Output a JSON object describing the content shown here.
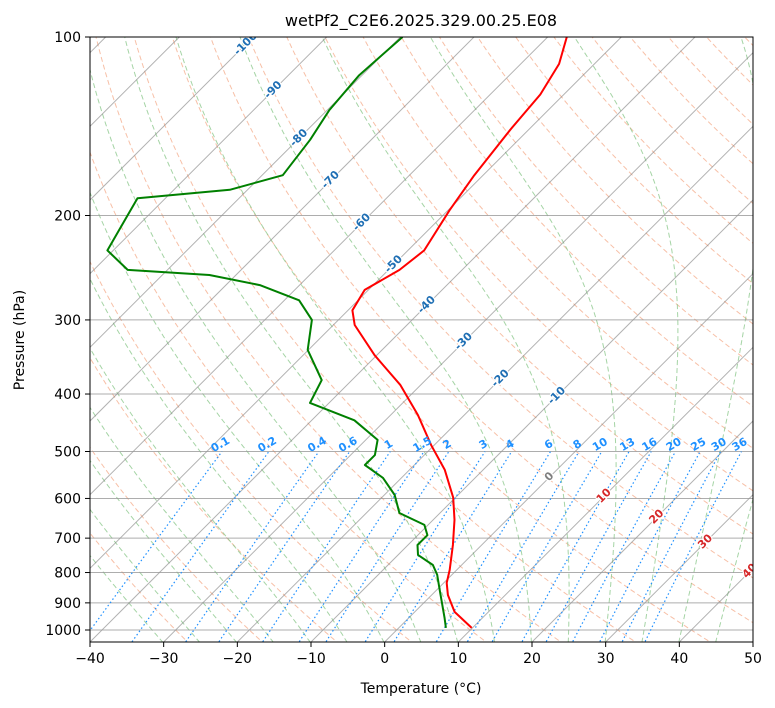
{
  "chart_data": {
    "type": "line",
    "title": "wetPf2_C2E6.2025.329.00.25.E08",
    "xlabel": "Temperature (°C)",
    "ylabel": "Pressure (hPa)",
    "xlim": [
      -40,
      50
    ],
    "ylim": [
      1050,
      100
    ],
    "yscale": "log",
    "grid": true,
    "x_ticks": [
      "−40",
      "−30",
      "−20",
      "−10",
      "0",
      "10",
      "20",
      "30",
      "40",
      "50"
    ],
    "x_tick_values": [
      -40,
      -30,
      -20,
      -10,
      0,
      10,
      20,
      30,
      40,
      50
    ],
    "y_ticks": [
      "100",
      "200",
      "300",
      "400",
      "500",
      "600",
      "700",
      "800",
      "900",
      "1000"
    ],
    "y_tick_values": [
      100,
      200,
      300,
      400,
      500,
      600,
      700,
      800,
      900,
      1000
    ],
    "isotherm_labels": [
      "-100",
      "-90",
      "-80",
      "-70",
      "-60",
      "-50",
      "-40",
      "-30",
      "-20",
      "-10",
      "0",
      "10",
      "20",
      "30",
      "40"
    ],
    "isotherm_label_values": [
      -100,
      -90,
      -80,
      -70,
      -60,
      -50,
      -40,
      -30,
      -20,
      -10,
      0,
      10,
      20,
      30,
      40
    ],
    "mixing_ratio_labels": [
      "0.1",
      "0.2",
      "0.4",
      "0.6",
      "1",
      "1.5",
      "2",
      "3",
      "4",
      "6",
      "8",
      "10",
      "13",
      "16",
      "20",
      "25",
      "30",
      "36"
    ],
    "mixing_ratio_values": [
      0.1,
      0.2,
      0.4,
      0.6,
      1,
      1.5,
      2,
      3,
      4,
      6,
      8,
      10,
      13,
      16,
      20,
      25,
      30,
      36
    ],
    "series": [
      {
        "name": "temperature",
        "color": "#ff0000",
        "pressure": [
          992,
          932,
          873,
          833,
          792,
          719,
          652,
          598,
          537,
          488,
          434,
          386,
          344,
          306,
          289,
          267,
          247,
          229,
          196,
          171,
          143,
          125,
          111,
          100
        ],
        "values": [
          9.9,
          5.4,
          2.2,
          0.4,
          -0.95,
          -3.9,
          -7.1,
          -10.3,
          -15.2,
          -20.4,
          -26.3,
          -32.8,
          -40.3,
          -47.1,
          -49.4,
          -50.5,
          -48.5,
          -47.8,
          -49.8,
          -51.2,
          -52.5,
          -53.2,
          -54.8,
          -57.4
        ]
      },
      {
        "name": "dewpoint",
        "color": "#008000",
        "pressure": [
          992,
          955,
          856,
          807,
          777,
          747,
          719,
          692,
          665,
          635,
          592,
          554,
          527,
          507,
          478,
          443,
          414,
          379,
          337,
          300,
          278,
          262,
          252,
          247,
          229,
          187,
          181,
          171,
          149,
          133,
          116,
          100
        ],
        "values": [
          6.4,
          4.9,
          0.4,
          -2.0,
          -3.9,
          -7.3,
          -8.7,
          -8.7,
          -10.5,
          -15.5,
          -18.6,
          -22.5,
          -26.7,
          -26.7,
          -28.4,
          -34.2,
          -42.6,
          -44.1,
          -50.1,
          -53.6,
          -58.0,
          -65.4,
          -73.6,
          -85.4,
          -90.8,
          -93.8,
          -82.4,
          -77.2,
          -78.3,
          -79.7,
          -80.4,
          -79.7
        ]
      }
    ],
    "colors": {
      "isotherm": "#808080",
      "dry_adiabat": "#f4a582",
      "moist_adiabat": "#8fc98f",
      "mixing_ratio": "#1e90ff",
      "isotherm_label_cold": "#1f6fb4",
      "isotherm_label_zero": "#808080",
      "isotherm_label_warm": "#d62728"
    }
  }
}
